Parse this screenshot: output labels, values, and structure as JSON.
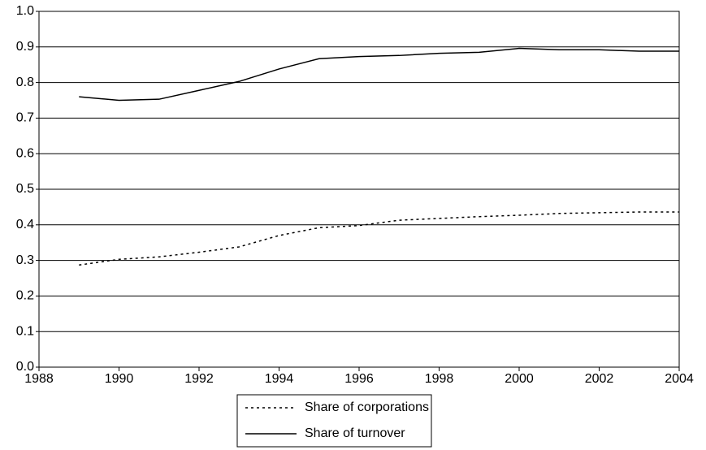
{
  "chart_data": {
    "type": "line",
    "x": [
      1989,
      1990,
      1991,
      1992,
      1993,
      1994,
      1995,
      1996,
      1997,
      1998,
      1999,
      2000,
      2001,
      2002,
      2003,
      2004
    ],
    "series": [
      {
        "name": "Share of corporations",
        "color": "#000000",
        "style": "dotted",
        "values": [
          0.287,
          0.303,
          0.31,
          0.323,
          0.338,
          0.37,
          0.392,
          0.398,
          0.413,
          0.418,
          0.423,
          0.427,
          0.432,
          0.434,
          0.436,
          0.436
        ]
      },
      {
        "name": "Share of turnover",
        "color": "#000000",
        "style": "solid",
        "values": [
          0.76,
          0.75,
          0.753,
          0.778,
          0.803,
          0.838,
          0.867,
          0.873,
          0.876,
          0.882,
          0.885,
          0.896,
          0.892,
          0.892,
          0.888,
          0.888
        ]
      }
    ],
    "xlim": [
      1988,
      2004
    ],
    "xticks": [
      1988,
      1990,
      1992,
      1994,
      1996,
      1998,
      2000,
      2002,
      2004
    ],
    "ylim": [
      0,
      1
    ],
    "yticks": [
      {
        "value": 0,
        "label": "0.0"
      },
      0.1,
      0.2,
      0.3,
      0.4,
      0.5,
      0.6,
      0.7,
      0.8,
      0.9,
      {
        "value": 1,
        "label": "1.0"
      }
    ],
    "grid": true,
    "legend": "bottom"
  }
}
